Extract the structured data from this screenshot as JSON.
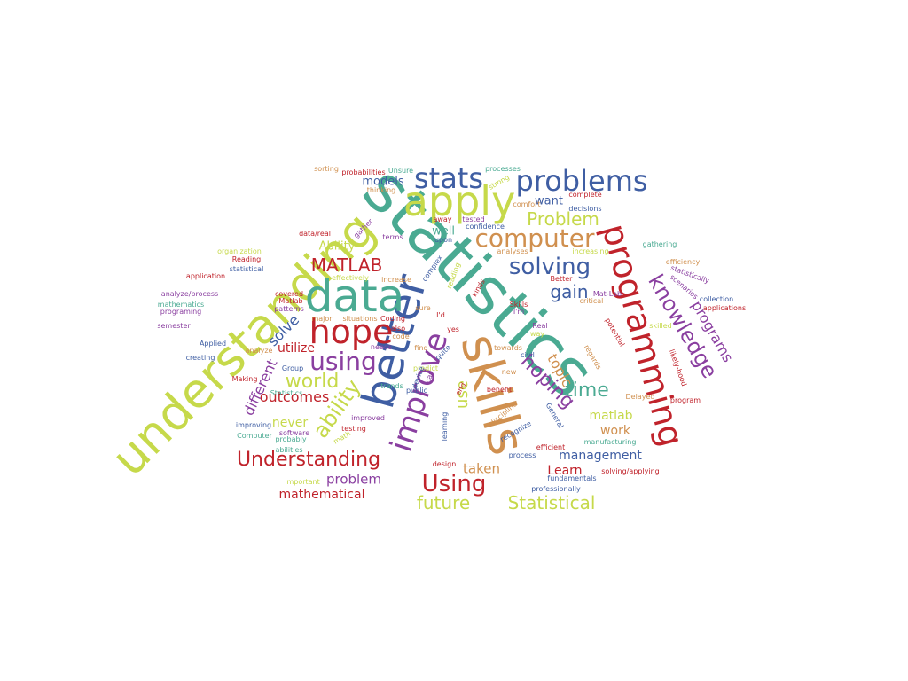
{
  "palette": {
    "green": "#c6d94a",
    "teal": "#4aaa92",
    "blue": "#3f5ea3",
    "red": "#c0232b",
    "orange": "#d0904f",
    "purple": "#8a3fa0"
  },
  "words": [
    {
      "text": "statistics",
      "color": "teal"
    },
    {
      "text": "understanding",
      "color": "green"
    },
    {
      "text": "skills",
      "color": "orange"
    },
    {
      "text": "better",
      "color": "blue"
    },
    {
      "text": "programming",
      "color": "red"
    },
    {
      "text": "data",
      "color": "teal"
    },
    {
      "text": "apply",
      "color": "green"
    },
    {
      "text": "improve",
      "color": "purple"
    },
    {
      "text": "hope",
      "color": "red"
    },
    {
      "text": "problems",
      "color": "blue"
    },
    {
      "text": "stats",
      "color": "blue"
    },
    {
      "text": "computer",
      "color": "orange"
    },
    {
      "text": "using",
      "color": "purple"
    },
    {
      "text": "knowledge",
      "color": "purple"
    },
    {
      "text": "hoping",
      "color": "purple"
    },
    {
      "text": "solving",
      "color": "blue"
    },
    {
      "text": "Understanding",
      "color": "red"
    },
    {
      "text": "ability",
      "color": "green"
    },
    {
      "text": "Using",
      "color": "red"
    },
    {
      "text": "MATLAB",
      "color": "red"
    },
    {
      "text": "world",
      "color": "green"
    },
    {
      "text": "time",
      "color": "teal"
    },
    {
      "text": "Problem",
      "color": "green"
    },
    {
      "text": "gain",
      "color": "blue"
    },
    {
      "text": "Statistical",
      "color": "green"
    },
    {
      "text": "future",
      "color": "green"
    },
    {
      "text": "programs",
      "color": "purple"
    },
    {
      "text": "topic",
      "color": "orange"
    },
    {
      "text": "use",
      "color": "green"
    },
    {
      "text": "outcomes",
      "color": "red"
    },
    {
      "text": "different",
      "color": "purple"
    },
    {
      "text": "solve",
      "color": "blue"
    },
    {
      "text": "management",
      "color": "blue"
    },
    {
      "text": "problem",
      "color": "purple"
    },
    {
      "text": "mathematical",
      "color": "red"
    },
    {
      "text": "taken",
      "color": "orange"
    },
    {
      "text": "Learn",
      "color": "red"
    },
    {
      "text": "matlab",
      "color": "green"
    },
    {
      "text": "work",
      "color": "orange"
    },
    {
      "text": "utilize",
      "color": "red"
    },
    {
      "text": "never",
      "color": "green"
    },
    {
      "text": "models",
      "color": "blue"
    },
    {
      "text": "want",
      "color": "blue"
    },
    {
      "text": "well",
      "color": "teal"
    },
    {
      "text": "Ability",
      "color": "green"
    },
    {
      "text": "sorting",
      "color": "orange"
    },
    {
      "text": "probabilities",
      "color": "red"
    },
    {
      "text": "Unsure",
      "color": "teal"
    },
    {
      "text": "thinking",
      "color": "orange"
    },
    {
      "text": "processes",
      "color": "teal"
    },
    {
      "text": "strong",
      "color": "green"
    },
    {
      "text": "complete",
      "color": "red"
    },
    {
      "text": "decisions",
      "color": "blue"
    },
    {
      "text": "comfort",
      "color": "orange"
    },
    {
      "text": "away",
      "color": "red"
    },
    {
      "text": "tested",
      "color": "purple"
    },
    {
      "text": "confidence",
      "color": "blue"
    },
    {
      "text": "gather",
      "color": "purple"
    },
    {
      "text": "data/real",
      "color": "red"
    },
    {
      "text": "terms",
      "color": "purple"
    },
    {
      "text": "upon",
      "color": "blue"
    },
    {
      "text": "gathering",
      "color": "teal"
    },
    {
      "text": "organization",
      "color": "green"
    },
    {
      "text": "Reading",
      "color": "red"
    },
    {
      "text": "analyses",
      "color": "orange"
    },
    {
      "text": "increasing",
      "color": "green"
    },
    {
      "text": "efficiency",
      "color": "orange"
    },
    {
      "text": "application",
      "color": "red"
    },
    {
      "text": "statistical",
      "color": "blue"
    },
    {
      "text": "effectively",
      "color": "green"
    },
    {
      "text": "increase",
      "color": "orange"
    },
    {
      "text": "complex",
      "color": "blue"
    },
    {
      "text": "reading",
      "color": "green"
    },
    {
      "text": "scenarios",
      "color": "purple"
    },
    {
      "text": "statistically",
      "color": "purple"
    },
    {
      "text": "collection",
      "color": "blue"
    },
    {
      "text": "applications",
      "color": "red"
    },
    {
      "text": "analyze/process",
      "color": "purple"
    },
    {
      "text": "covered",
      "color": "red"
    },
    {
      "text": "Matlab",
      "color": "red"
    },
    {
      "text": "patterns",
      "color": "purple"
    },
    {
      "text": "kinds",
      "color": "red"
    },
    {
      "text": "Better",
      "color": "red"
    },
    {
      "text": "Mat-Lab",
      "color": "purple"
    },
    {
      "text": "critical",
      "color": "orange"
    },
    {
      "text": "mathematics",
      "color": "teal"
    },
    {
      "text": "programing",
      "color": "purple"
    },
    {
      "text": "major",
      "color": "orange"
    },
    {
      "text": "situations",
      "color": "orange"
    },
    {
      "text": "Coding",
      "color": "red"
    },
    {
      "text": "sure",
      "color": "orange"
    },
    {
      "text": "Skills",
      "color": "red"
    },
    {
      "text": "I'm",
      "color": "purple"
    },
    {
      "text": "skilled",
      "color": "green"
    },
    {
      "text": "potential",
      "color": "red"
    },
    {
      "text": "semester",
      "color": "purple"
    },
    {
      "text": "also",
      "color": "red"
    },
    {
      "text": "code",
      "color": "orange"
    },
    {
      "text": "I'd",
      "color": "red"
    },
    {
      "text": "yes",
      "color": "red"
    },
    {
      "text": "Real",
      "color": "purple"
    },
    {
      "text": "way",
      "color": "green"
    },
    {
      "text": "Applied",
      "color": "blue"
    },
    {
      "text": "analyze",
      "color": "orange"
    },
    {
      "text": "needs",
      "color": "purple"
    },
    {
      "text": "find",
      "color": "orange"
    },
    {
      "text": "quite",
      "color": "blue"
    },
    {
      "text": "towards",
      "color": "orange"
    },
    {
      "text": "civil",
      "color": "blue"
    },
    {
      "text": "regards",
      "color": "orange"
    },
    {
      "text": "likely-hood",
      "color": "red"
    },
    {
      "text": "creating",
      "color": "blue"
    },
    {
      "text": "Group",
      "color": "blue"
    },
    {
      "text": "predict",
      "color": "green"
    },
    {
      "text": "can",
      "color": "purple"
    },
    {
      "text": "device",
      "color": "blue"
    },
    {
      "text": "new",
      "color": "orange"
    },
    {
      "text": "Making",
      "color": "red"
    },
    {
      "text": "Statistics",
      "color": "teal"
    },
    {
      "text": "trends",
      "color": "teal"
    },
    {
      "text": "public",
      "color": "blue"
    },
    {
      "text": "end",
      "color": "red"
    },
    {
      "text": "benefit",
      "color": "red"
    },
    {
      "text": "Delayed",
      "color": "orange"
    },
    {
      "text": "program",
      "color": "red"
    },
    {
      "text": "improving",
      "color": "blue"
    },
    {
      "text": "improved",
      "color": "purple"
    },
    {
      "text": "discipline",
      "color": "orange"
    },
    {
      "text": "General",
      "color": "blue"
    },
    {
      "text": "software",
      "color": "purple"
    },
    {
      "text": "Computer",
      "color": "teal"
    },
    {
      "text": "testing",
      "color": "red"
    },
    {
      "text": "math",
      "color": "green"
    },
    {
      "text": "learning",
      "color": "blue"
    },
    {
      "text": "probably",
      "color": "teal"
    },
    {
      "text": "recognize",
      "color": "blue"
    },
    {
      "text": "manufacturing",
      "color": "teal"
    },
    {
      "text": "abilities",
      "color": "teal"
    },
    {
      "text": "process",
      "color": "blue"
    },
    {
      "text": "efficient",
      "color": "red"
    },
    {
      "text": "design",
      "color": "red"
    },
    {
      "text": "solving/applying",
      "color": "red"
    },
    {
      "text": "important",
      "color": "green"
    },
    {
      "text": "fundamentals",
      "color": "blue"
    },
    {
      "text": "professionally",
      "color": "blue"
    }
  ]
}
